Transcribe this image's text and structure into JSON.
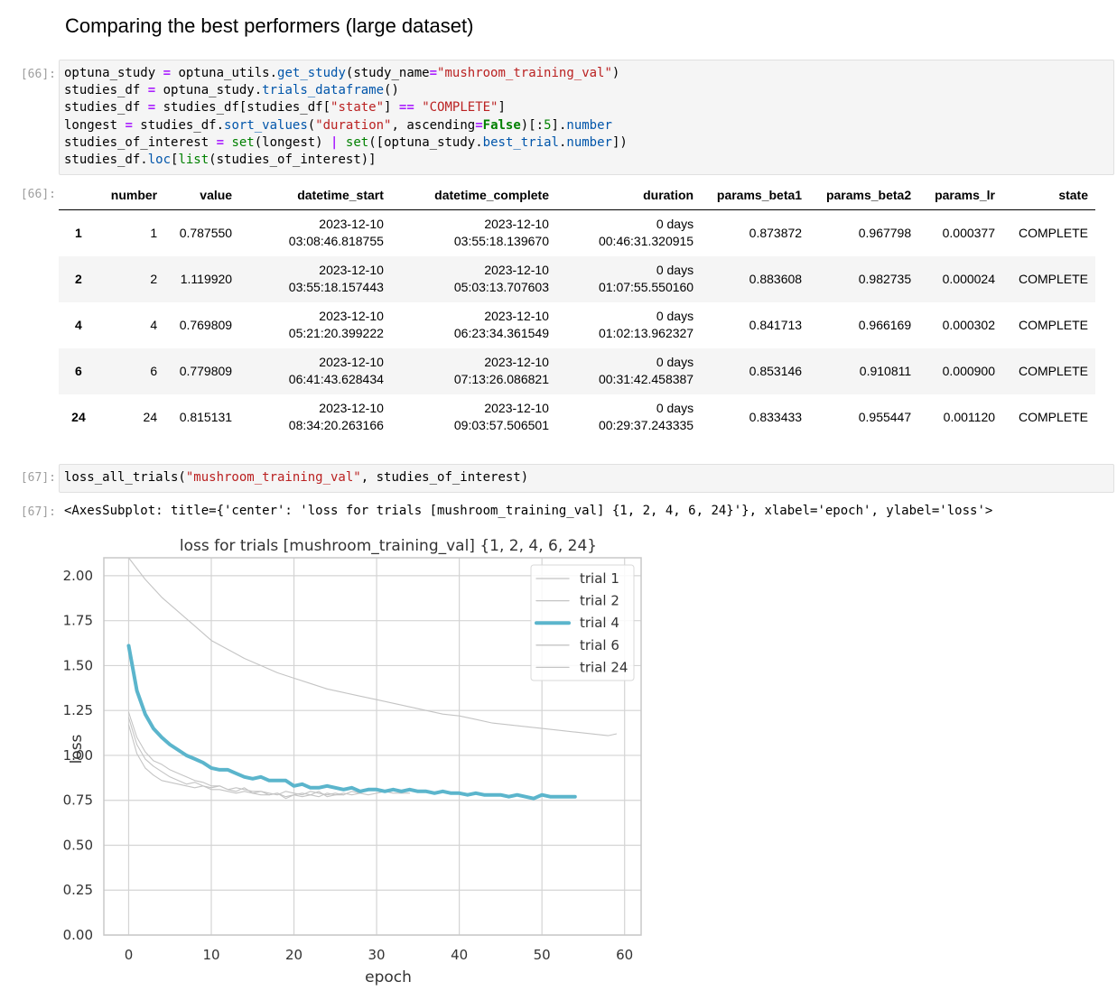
{
  "heading": "Comparing the best performers (large dataset)",
  "cell66": {
    "in_prompt": "[66]:",
    "out_prompt": "[66]:",
    "code_lines": [
      [
        [
          "optuna_study ",
          ""
        ],
        [
          "=",
          "op"
        ],
        [
          " optuna_utils.",
          ""
        ],
        [
          "get_study",
          "attr"
        ],
        [
          "(study_name",
          ""
        ],
        [
          "=",
          "op"
        ],
        [
          "\"mushroom_training_val\"",
          "str"
        ],
        [
          ")",
          ""
        ]
      ],
      [
        [
          "studies_df ",
          ""
        ],
        [
          "=",
          "op"
        ],
        [
          " optuna_study.",
          ""
        ],
        [
          "trials_dataframe",
          "attr"
        ],
        [
          "()",
          ""
        ]
      ],
      [
        [
          "studies_df ",
          ""
        ],
        [
          "=",
          "op"
        ],
        [
          " studies_df[studies_df[",
          ""
        ],
        [
          "\"state\"",
          "str"
        ],
        [
          "] ",
          ""
        ],
        [
          "==",
          "op"
        ],
        [
          " ",
          ""
        ],
        [
          "\"COMPLETE\"",
          "str"
        ],
        [
          "]",
          ""
        ]
      ],
      [
        [
          "longest ",
          ""
        ],
        [
          "=",
          "op"
        ],
        [
          " studies_df.",
          ""
        ],
        [
          "sort_values",
          "attr"
        ],
        [
          "(",
          ""
        ],
        [
          "\"duration\"",
          "str"
        ],
        [
          ", ascending",
          ""
        ],
        [
          "=",
          "op"
        ],
        [
          "False",
          "kw"
        ],
        [
          ")[:",
          ""
        ],
        [
          "5",
          "num"
        ],
        [
          "].",
          ""
        ],
        [
          "number",
          "attr"
        ]
      ],
      [
        [
          "studies_of_interest ",
          ""
        ],
        [
          "=",
          "op"
        ],
        [
          " ",
          ""
        ],
        [
          "set",
          "bi"
        ],
        [
          "(longest) ",
          ""
        ],
        [
          "|",
          "op"
        ],
        [
          " ",
          ""
        ],
        [
          "set",
          "bi"
        ],
        [
          "([optuna_study.",
          ""
        ],
        [
          "best_trial",
          "attr"
        ],
        [
          ".",
          ""
        ],
        [
          "number",
          "attr"
        ],
        [
          "])",
          ""
        ]
      ],
      [
        [
          "studies_df.",
          ""
        ],
        [
          "loc",
          "attr"
        ],
        [
          "[",
          ""
        ],
        [
          "list",
          "bi"
        ],
        [
          "(studies_of_interest)]",
          ""
        ]
      ]
    ],
    "table": {
      "columns": [
        "",
        "number",
        "value",
        "datetime_start",
        "datetime_complete",
        "duration",
        "params_beta1",
        "params_beta2",
        "params_lr",
        "state"
      ],
      "rows": [
        {
          "index": "1",
          "number": "1",
          "value": "0.787550",
          "start_date": "2023-12-10",
          "start_time": "03:08:46.818755",
          "complete_date": "2023-12-10",
          "complete_time": "03:55:18.139670",
          "duration_days": "0 days",
          "duration_time": "00:46:31.320915",
          "beta1": "0.873872",
          "beta2": "0.967798",
          "lr": "0.000377",
          "state": "COMPLETE"
        },
        {
          "index": "2",
          "number": "2",
          "value": "1.119920",
          "start_date": "2023-12-10",
          "start_time": "03:55:18.157443",
          "complete_date": "2023-12-10",
          "complete_time": "05:03:13.707603",
          "duration_days": "0 days",
          "duration_time": "01:07:55.550160",
          "beta1": "0.883608",
          "beta2": "0.982735",
          "lr": "0.000024",
          "state": "COMPLETE"
        },
        {
          "index": "4",
          "number": "4",
          "value": "0.769809",
          "start_date": "2023-12-10",
          "start_time": "05:21:20.399222",
          "complete_date": "2023-12-10",
          "complete_time": "06:23:34.361549",
          "duration_days": "0 days",
          "duration_time": "01:02:13.962327",
          "beta1": "0.841713",
          "beta2": "0.966169",
          "lr": "0.000302",
          "state": "COMPLETE"
        },
        {
          "index": "6",
          "number": "6",
          "value": "0.779809",
          "start_date": "2023-12-10",
          "start_time": "06:41:43.628434",
          "complete_date": "2023-12-10",
          "complete_time": "07:13:26.086821",
          "duration_days": "0 days",
          "duration_time": "00:31:42.458387",
          "beta1": "0.853146",
          "beta2": "0.910811",
          "lr": "0.000900",
          "state": "COMPLETE"
        },
        {
          "index": "24",
          "number": "24",
          "value": "0.815131",
          "start_date": "2023-12-10",
          "start_time": "08:34:20.263166",
          "complete_date": "2023-12-10",
          "complete_time": "09:03:57.506501",
          "duration_days": "0 days",
          "duration_time": "00:29:37.243335",
          "beta1": "0.833433",
          "beta2": "0.955447",
          "lr": "0.001120",
          "state": "COMPLETE"
        }
      ]
    }
  },
  "cell67": {
    "in_prompt": "[67]:",
    "out_prompt": "[67]:",
    "code_lines": [
      [
        [
          "loss_all_trials(",
          ""
        ],
        [
          "\"mushroom_training_val\"",
          "str"
        ],
        [
          ", studies_of_interest)",
          ""
        ]
      ]
    ],
    "output_text": "<AxesSubplot: title={'center': 'loss for trials [mushroom_training_val] {1, 2, 4, 6, 24}'}, xlabel='epoch', ylabel='loss'>"
  },
  "colors": {
    "highlight": "#5bb5cc",
    "faint": "#c4c4c4",
    "grid": "#d4d4d4",
    "spine": "#c8c8c8"
  },
  "chart_data": {
    "type": "line",
    "title": "loss for trials [mushroom_training_val] {1, 2, 4, 6, 24}",
    "xlabel": "epoch",
    "ylabel": "loss",
    "xlim": [
      -3,
      62
    ],
    "ylim": [
      0,
      2.1
    ],
    "xticks": [
      0,
      10,
      20,
      30,
      40,
      50,
      60
    ],
    "yticks": [
      0.0,
      0.25,
      0.5,
      0.75,
      1.0,
      1.25,
      1.5,
      1.75,
      2.0
    ],
    "ytick_labels": [
      "0.00",
      "0.25",
      "0.50",
      "0.75",
      "1.00",
      "1.25",
      "1.50",
      "1.75",
      "2.00"
    ],
    "legend_position": "top-right",
    "series": [
      {
        "name": "trial 1",
        "highlight": false,
        "x": [
          0,
          1,
          2,
          3,
          4,
          5,
          6,
          7,
          8,
          9,
          10,
          11,
          12,
          13,
          14,
          15,
          16,
          17,
          18,
          19,
          20,
          21,
          22,
          23,
          24,
          25,
          26,
          27,
          28,
          29,
          30,
          31,
          32,
          33,
          34
        ],
        "values": [
          1.21,
          1.06,
          0.98,
          0.94,
          0.91,
          0.88,
          0.86,
          0.84,
          0.85,
          0.83,
          0.82,
          0.83,
          0.81,
          0.8,
          0.82,
          0.79,
          0.8,
          0.79,
          0.78,
          0.8,
          0.79,
          0.78,
          0.8,
          0.79,
          0.78,
          0.79,
          0.78,
          0.8,
          0.79,
          0.78,
          0.79,
          0.8,
          0.79,
          0.79,
          0.79
        ]
      },
      {
        "name": "trial 2",
        "highlight": false,
        "x": [
          0,
          2,
          4,
          6,
          8,
          10,
          12,
          14,
          16,
          18,
          20,
          22,
          24,
          26,
          28,
          30,
          32,
          34,
          36,
          38,
          40,
          42,
          44,
          46,
          48,
          50,
          52,
          54,
          56,
          58,
          59
        ],
        "values": [
          2.1,
          1.98,
          1.88,
          1.8,
          1.72,
          1.64,
          1.59,
          1.54,
          1.5,
          1.46,
          1.43,
          1.4,
          1.37,
          1.35,
          1.33,
          1.31,
          1.29,
          1.27,
          1.25,
          1.23,
          1.22,
          1.2,
          1.18,
          1.17,
          1.16,
          1.15,
          1.14,
          1.13,
          1.12,
          1.11,
          1.12
        ]
      },
      {
        "name": "trial 4",
        "highlight": true,
        "x": [
          0,
          1,
          2,
          3,
          4,
          5,
          6,
          7,
          8,
          9,
          10,
          11,
          12,
          13,
          14,
          15,
          16,
          17,
          18,
          19,
          20,
          21,
          22,
          23,
          24,
          25,
          26,
          27,
          28,
          29,
          30,
          31,
          32,
          33,
          34,
          35,
          36,
          37,
          38,
          39,
          40,
          41,
          42,
          43,
          44,
          45,
          46,
          47,
          48,
          49,
          50,
          51,
          52,
          53,
          54
        ],
        "values": [
          1.61,
          1.36,
          1.23,
          1.15,
          1.1,
          1.06,
          1.03,
          1.0,
          0.98,
          0.96,
          0.93,
          0.92,
          0.92,
          0.9,
          0.88,
          0.87,
          0.88,
          0.86,
          0.86,
          0.86,
          0.83,
          0.84,
          0.82,
          0.82,
          0.83,
          0.82,
          0.81,
          0.82,
          0.8,
          0.81,
          0.81,
          0.8,
          0.81,
          0.8,
          0.81,
          0.8,
          0.8,
          0.79,
          0.8,
          0.79,
          0.79,
          0.78,
          0.79,
          0.78,
          0.78,
          0.78,
          0.77,
          0.78,
          0.77,
          0.76,
          0.78,
          0.77,
          0.77,
          0.77,
          0.77
        ]
      },
      {
        "name": "trial 6",
        "highlight": false,
        "x": [
          0,
          1,
          2,
          3,
          4,
          5,
          6,
          7,
          8,
          9,
          10,
          11,
          12,
          13,
          14,
          15,
          16,
          17,
          18,
          19,
          20,
          21,
          22,
          23,
          24,
          25,
          26,
          27,
          28
        ],
        "values": [
          1.17,
          1.01,
          0.93,
          0.89,
          0.86,
          0.85,
          0.84,
          0.83,
          0.82,
          0.83,
          0.81,
          0.81,
          0.8,
          0.79,
          0.8,
          0.79,
          0.78,
          0.78,
          0.79,
          0.76,
          0.78,
          0.77,
          0.78,
          0.8,
          0.77,
          0.78,
          0.79,
          0.78,
          0.79
        ]
      },
      {
        "name": "trial 24",
        "highlight": false,
        "x": [
          0,
          1,
          2,
          3,
          4,
          5,
          6,
          7,
          8,
          9,
          10,
          11,
          12,
          13,
          14,
          15,
          16,
          17,
          18,
          19,
          20,
          21,
          22,
          23,
          24,
          25,
          26
        ],
        "values": [
          1.24,
          1.1,
          1.02,
          0.97,
          0.95,
          0.92,
          0.9,
          0.88,
          0.86,
          0.85,
          0.83,
          0.83,
          0.81,
          0.82,
          0.81,
          0.8,
          0.8,
          0.78,
          0.79,
          0.77,
          0.78,
          0.79,
          0.78,
          0.77,
          0.79,
          0.78,
          0.78
        ]
      }
    ]
  }
}
